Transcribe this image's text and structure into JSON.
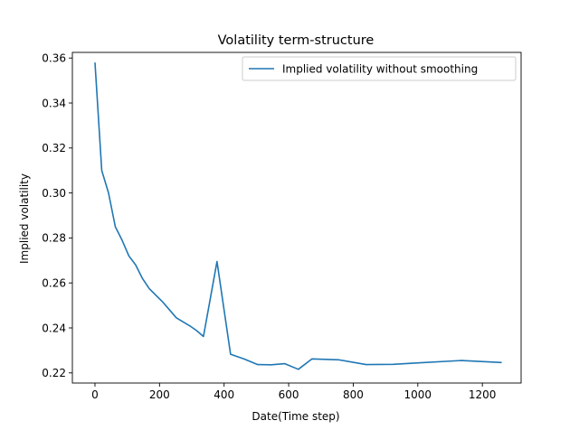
{
  "chart_data": {
    "type": "line",
    "title": "Volatility term-structure",
    "xlabel": "Date(Time step)",
    "ylabel": "Implied volatility",
    "xlim": [
      -70,
      1320
    ],
    "ylim": [
      0.2155,
      0.3625
    ],
    "xticks": [
      0,
      200,
      400,
      600,
      800,
      1000,
      1200
    ],
    "yticks": [
      0.22,
      0.24,
      0.26,
      0.28,
      0.3,
      0.32,
      0.34,
      0.36
    ],
    "ytick_labels": [
      "0.22",
      "0.24",
      "0.26",
      "0.28",
      "0.30",
      "0.32",
      "0.34",
      "0.36"
    ],
    "legend_position": "top-right",
    "colors": {
      "line": "#1f77b4",
      "axes": "#000000",
      "legend_border": "#cccccc"
    },
    "series": [
      {
        "name": "Implied volatility without smoothing",
        "x": [
          0,
          21,
          42,
          63,
          84,
          105,
          126,
          147,
          168,
          189,
          210,
          231,
          252,
          273,
          294,
          315,
          336,
          378,
          420,
          462,
          504,
          546,
          588,
          630,
          672,
          756,
          840,
          924,
          1008,
          1134,
          1260
        ],
        "y": [
          0.358,
          0.31,
          0.3,
          0.285,
          0.279,
          0.272,
          0.268,
          0.262,
          0.2575,
          0.2545,
          0.2515,
          0.248,
          0.2445,
          0.2427,
          0.2409,
          0.2388,
          0.2362,
          0.2695,
          0.2283,
          0.2262,
          0.2237,
          0.2236,
          0.2241,
          0.2216,
          0.2262,
          0.2258,
          0.2237,
          0.2238,
          0.2245,
          0.2255,
          0.2246
        ]
      }
    ]
  }
}
